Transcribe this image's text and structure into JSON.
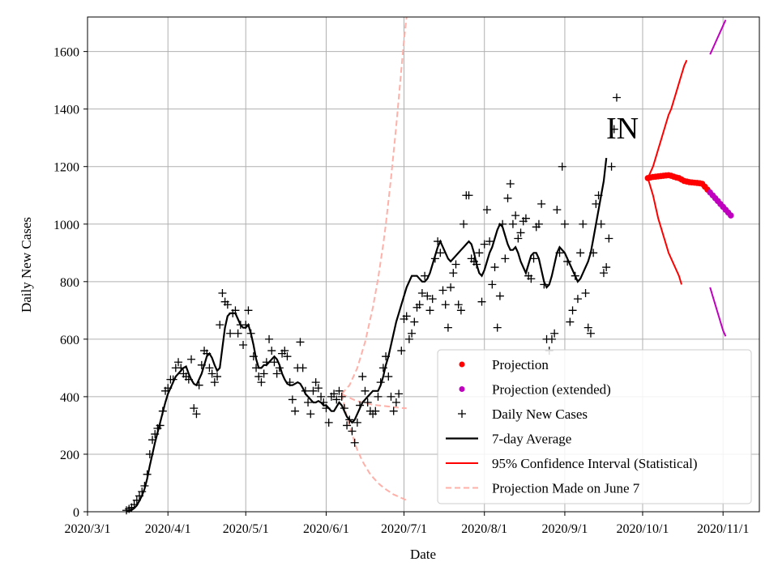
{
  "chart_data": {
    "type": "line",
    "state_label": "IN",
    "xlabel": "Date",
    "ylabel": "Daily New Cases",
    "xlim": [
      "2020-03-01",
      "2020-11-15"
    ],
    "ylim": [
      0,
      1720
    ],
    "grid": true,
    "x_ticks": [
      "2020/3/1",
      "2020/4/1",
      "2020/5/1",
      "2020/6/1",
      "2020/7/1",
      "2020/8/1",
      "2020/9/1",
      "2020/10/1",
      "2020/11/1"
    ],
    "y_ticks": [
      0,
      200,
      400,
      600,
      800,
      1000,
      1200,
      1400,
      1600
    ],
    "legend": {
      "position": "lower-right",
      "entries": [
        "Projection",
        "Projection (extended)",
        "Daily New Cases",
        "7-day Average",
        "95% Confidence Interval (Statistical)",
        "Projection Made on June 7"
      ]
    },
    "colors": {
      "projection": "#ff0000",
      "projection_extended": "#bf00bf",
      "daily": "#000000",
      "average": "#000000",
      "ci": "#ff0000",
      "ci_extended": "#bf00bf",
      "june7": "#ffb0a8"
    },
    "series": [
      {
        "name": "Daily New Cases",
        "x_start": "2020-03-16",
        "values": [
          5,
          10,
          15,
          25,
          40,
          55,
          70,
          90,
          130,
          200,
          250,
          270,
          290,
          300,
          350,
          420,
          430,
          460,
          460,
          500,
          520,
          500,
          480,
          470,
          460,
          530,
          360,
          340,
          440,
          510,
          560,
          550,
          500,
          480,
          450,
          470,
          650,
          760,
          730,
          720,
          620,
          690,
          700,
          620,
          650,
          580,
          650,
          700,
          620,
          540,
          500,
          470,
          450,
          480,
          520,
          600,
          560,
          520,
          480,
          500,
          550,
          560,
          540,
          450,
          390,
          350,
          500,
          590,
          500,
          420,
          380,
          340,
          420,
          450,
          430,
          400,
          380,
          360,
          310,
          400,
          410,
          390,
          420,
          400,
          360,
          300,
          320,
          280,
          240,
          310,
          370,
          470,
          420,
          380,
          350,
          340,
          350,
          400,
          450,
          500,
          540,
          470,
          400,
          350,
          380,
          410,
          560,
          670,
          680,
          600,
          620,
          660,
          710,
          720,
          760,
          820,
          750,
          700,
          740,
          880,
          940,
          900,
          770,
          720,
          640,
          780,
          830,
          860,
          720,
          700,
          1000,
          1100,
          1100,
          880,
          870,
          860,
          900,
          730,
          930,
          1050,
          940,
          790,
          850,
          640,
          750,
          1000,
          880,
          1090,
          1140,
          1000,
          1030,
          950,
          970,
          1010,
          1020,
          820,
          810,
          880,
          990,
          1000,
          1070,
          790,
          600,
          560,
          600,
          620,
          1050,
          900,
          1200,
          1000,
          870,
          660,
          700,
          820,
          740,
          900,
          1000,
          760,
          640,
          620,
          900,
          1070,
          1100,
          1000,
          830,
          850,
          950,
          1200,
          1330,
          1440
        ]
      },
      {
        "name": "7-day Average",
        "x_start": "2020-03-16",
        "values": [
          0,
          3,
          6,
          12,
          22,
          38,
          56,
          80,
          115,
          160,
          200,
          240,
          275,
          310,
          345,
          380,
          410,
          430,
          450,
          470,
          480,
          490,
          500,
          505,
          480,
          460,
          445,
          440,
          460,
          480,
          510,
          540,
          550,
          535,
          510,
          490,
          500,
          570,
          640,
          680,
          690,
          690,
          690,
          670,
          650,
          640,
          640,
          650,
          620,
          580,
          530,
          500,
          500,
          510,
          510,
          520,
          530,
          540,
          530,
          510,
          480,
          460,
          445,
          440,
          440,
          445,
          450,
          445,
          430,
          410,
          400,
          390,
          380,
          380,
          385,
          380,
          370,
          370,
          360,
          350,
          350,
          365,
          380,
          370,
          350,
          330,
          320,
          310,
          320,
          340,
          360,
          380,
          390,
          400,
          410,
          420,
          420,
          420,
          440,
          470,
          510,
          540,
          580,
          620,
          660,
          690,
          720,
          750,
          780,
          800,
          820,
          820,
          820,
          810,
          800,
          800,
          810,
          830,
          860,
          890,
          920,
          940,
          920,
          900,
          880,
          870,
          880,
          890,
          900,
          910,
          920,
          930,
          940,
          930,
          900,
          860,
          830,
          820,
          840,
          870,
          900,
          920,
          950,
          980,
          1000,
          990,
          960,
          930,
          910,
          910,
          920,
          900,
          870,
          850,
          830,
          860,
          890,
          900,
          900,
          880,
          840,
          800,
          780,
          790,
          820,
          860,
          900,
          920,
          910,
          900,
          880,
          860,
          840,
          820,
          800,
          810,
          830,
          850,
          870,
          900,
          950,
          1000,
          1050,
          1100,
          1150,
          1230
        ]
      },
      {
        "name": "Projection",
        "x_start": "2020-10-03",
        "values": [
          1160,
          1162,
          1164,
          1165,
          1166,
          1167,
          1168,
          1169,
          1170,
          1168,
          1165,
          1162,
          1160,
          1155,
          1150,
          1148,
          1146,
          1145,
          1144,
          1143,
          1142,
          1140,
          1130,
          1120
        ]
      },
      {
        "name": "Projection (extended)",
        "x_start": "2020-10-27",
        "values": [
          1110,
          1100,
          1090,
          1080,
          1070,
          1060,
          1050,
          1040,
          1030
        ]
      },
      {
        "name": "95% Confidence Interval (Statistical) - upper",
        "x_start": "2020-10-03",
        "values": [
          1160,
          1180,
          1200,
          1230,
          1260,
          1290,
          1320,
          1350,
          1380,
          1400,
          1430,
          1460,
          1490,
          1520,
          1550,
          1570
        ]
      },
      {
        "name": "95% Confidence Interval (Statistical) - lower",
        "x_start": "2020-10-03",
        "values": [
          1160,
          1130,
          1100,
          1060,
          1020,
          990,
          960,
          930,
          900,
          880,
          860,
          840,
          820,
          790
        ]
      },
      {
        "name": "95% Confidence Interval (extended) - upper",
        "x_start": "2020-10-27",
        "values": [
          1590,
          1610,
          1630,
          1650,
          1670,
          1690,
          1710
        ]
      },
      {
        "name": "95% Confidence Interval (extended) - lower",
        "x_start": "2020-10-27",
        "values": [
          780,
          750,
          720,
          690,
          660,
          630,
          610
        ]
      },
      {
        "name": "Projection Made on June 7 - upper",
        "x_start": "2020-06-07",
        "values": [
          410,
          420,
          430,
          440,
          460,
          480,
          500,
          530,
          560,
          590,
          630,
          670,
          710,
          760,
          810,
          870,
          930,
          1000,
          1080,
          1160,
          1250,
          1340,
          1440,
          1540,
          1640,
          1720
        ]
      },
      {
        "name": "Projection Made on June 7 - center",
        "x_start": "2020-06-07",
        "values": [
          410,
          405,
          400,
          396,
          392,
          388,
          385,
          382,
          380,
          378,
          376,
          374,
          372,
          371,
          370,
          369,
          368,
          367,
          366,
          365,
          364,
          363,
          362,
          361,
          360,
          360
        ]
      },
      {
        "name": "Projection Made on June 7 - lower",
        "x_start": "2020-06-07",
        "values": [
          410,
          370,
          330,
          300,
          270,
          240,
          215,
          195,
          175,
          160,
          145,
          130,
          120,
          110,
          100,
          92,
          85,
          78,
          72,
          66,
          60,
          56,
          52,
          48,
          44,
          40
        ]
      }
    ]
  }
}
